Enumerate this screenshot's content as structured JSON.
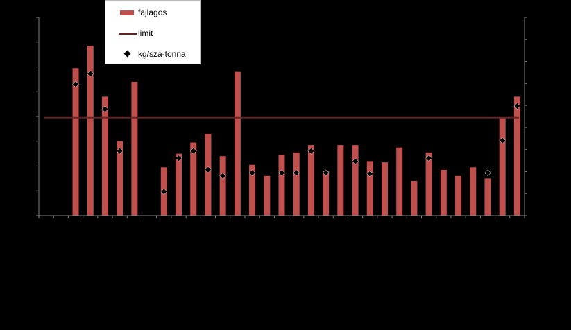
{
  "chart_data": {
    "type": "bar",
    "y_left_range": [
      0,
      8.0
    ],
    "y_right_range": [
      0,
      9.5
    ],
    "grid": false,
    "legend_position": "top-left",
    "colors": {
      "background": "#000000",
      "bar": "#c0504d",
      "limit": "#632423",
      "marker": "#000000",
      "axis": "#808080"
    },
    "series": [
      {
        "name": "fajlagos",
        "type": "bar",
        "values": [
          null,
          null,
          5.95,
          6.85,
          4.8,
          3.0,
          5.4,
          null,
          1.95,
          2.5,
          2.95,
          3.3,
          2.4,
          5.8,
          2.05,
          1.6,
          2.45,
          2.55,
          2.85,
          1.8,
          2.85,
          2.85,
          2.2,
          2.15,
          2.75,
          1.4,
          2.55,
          1.85,
          1.6,
          1.95,
          1.5,
          3.95,
          4.8
        ]
      },
      {
        "name": "limit",
        "type": "line",
        "value": 3.95
      },
      {
        "name": "kg/sza-tonna",
        "type": "scatter",
        "axis": "right",
        "values": [
          null,
          null,
          6.3,
          6.8,
          5.1,
          3.1,
          null,
          null,
          1.15,
          2.75,
          3.1,
          2.2,
          1.9,
          null,
          2.05,
          null,
          2.05,
          2.05,
          3.1,
          2.05,
          null,
          2.6,
          2.0,
          null,
          null,
          null,
          2.75,
          null,
          null,
          null,
          2.05,
          3.6,
          5.25
        ]
      }
    ]
  }
}
